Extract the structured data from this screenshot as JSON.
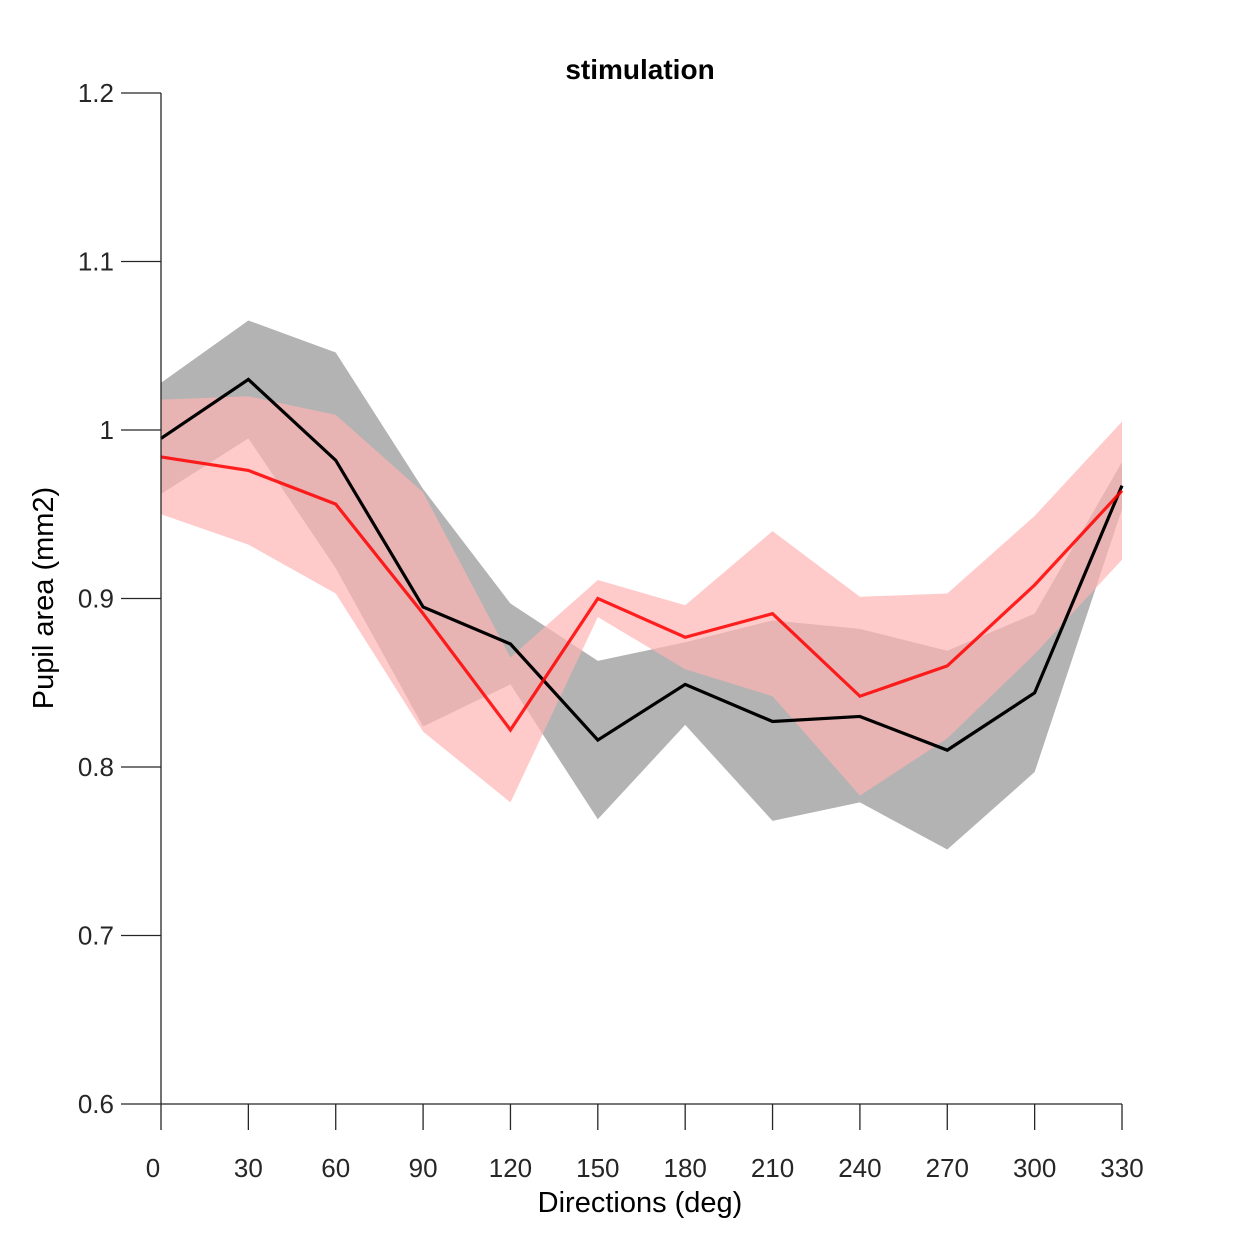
{
  "chart_data": {
    "type": "line",
    "title": "stimulation",
    "xlabel": "Directions (deg)",
    "ylabel": "Pupil area (mm2)",
    "xlim": [
      0,
      330
    ],
    "ylim": [
      0.6,
      1.2
    ],
    "xticks": [
      0,
      30,
      60,
      90,
      120,
      150,
      180,
      210,
      240,
      270,
      300,
      330
    ],
    "yticks": [
      0.6,
      0.7,
      0.8,
      0.9,
      1,
      1.1,
      1.2
    ],
    "ytick_labels": [
      "0.6",
      "0.7",
      "0.8",
      "0.9",
      "1",
      "1.1",
      "1.2"
    ],
    "grid": false,
    "x": [
      0,
      30,
      60,
      90,
      120,
      150,
      180,
      210,
      240,
      270,
      300,
      330
    ],
    "series": [
      {
        "color": "#000000",
        "band_color": "#b3b3b3",
        "values": [
          0.995,
          1.03,
          0.982,
          0.895,
          0.873,
          0.816,
          0.849,
          0.827,
          0.83,
          0.81,
          0.844,
          0.967
        ],
        "upper": [
          1.028,
          1.065,
          1.046,
          0.965,
          0.897,
          0.863,
          0.874,
          0.887,
          0.882,
          0.869,
          0.891,
          0.981
        ],
        "lower": [
          0.962,
          0.995,
          0.918,
          0.824,
          0.849,
          0.769,
          0.825,
          0.768,
          0.779,
          0.751,
          0.797,
          0.953
        ]
      },
      {
        "color": "#ff0000",
        "band_color": "#ffb3b3",
        "values": [
          0.984,
          0.976,
          0.956,
          0.891,
          0.822,
          0.9,
          0.877,
          0.891,
          0.842,
          0.86,
          0.908,
          0.964
        ],
        "upper": [
          1.018,
          1.02,
          1.009,
          0.963,
          0.865,
          0.911,
          0.896,
          0.94,
          0.901,
          0.903,
          0.949,
          1.005
        ],
        "lower": [
          0.95,
          0.932,
          0.903,
          0.821,
          0.779,
          0.889,
          0.858,
          0.842,
          0.783,
          0.817,
          0.867,
          0.923
        ]
      }
    ]
  }
}
